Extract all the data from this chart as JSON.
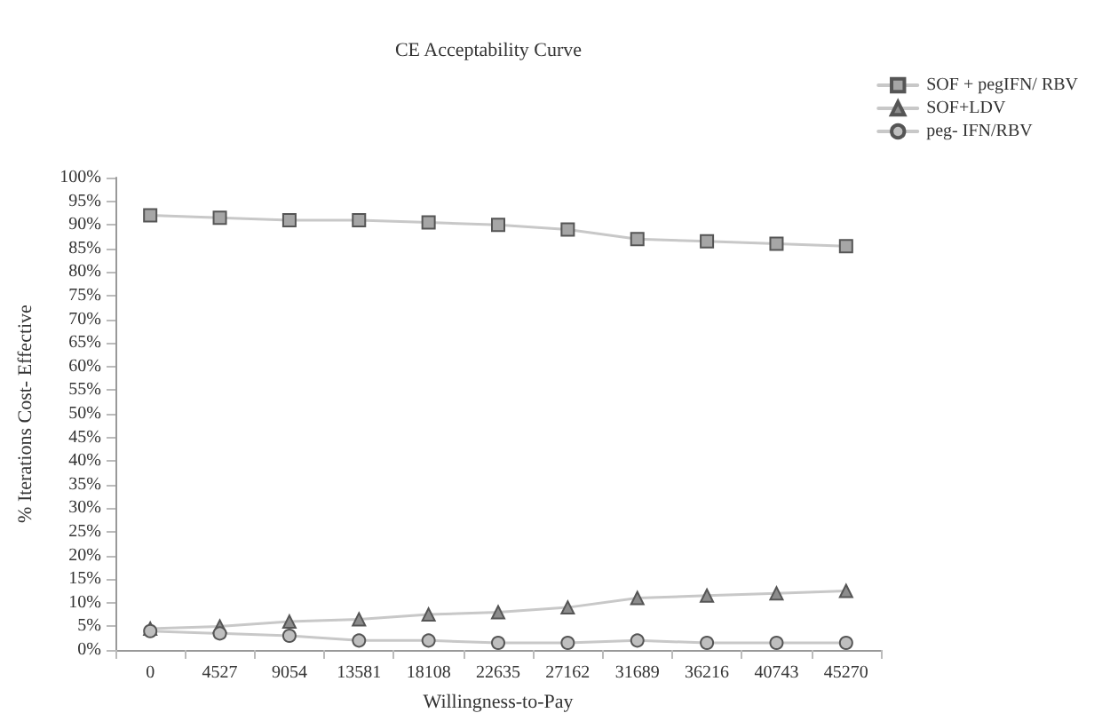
{
  "chart_data": {
    "type": "line",
    "title": "CE Acceptability Curve",
    "xlabel": "Willingness-to-Pay",
    "ylabel": "% Iterations Cost- Effective",
    "categories": [
      "0",
      "4527",
      "9054",
      "13581",
      "18108",
      "22635",
      "27162",
      "31689",
      "36216",
      "40743",
      "45270"
    ],
    "series": [
      {
        "name": "SOF + pegIFN/ RBV",
        "color": "#a6a6a6",
        "marker": "square",
        "values": [
          92,
          91.5,
          91,
          91,
          90.5,
          90,
          89,
          87,
          86.5,
          86,
          85.5
        ]
      },
      {
        "name": "SOF+LDV",
        "color": "#8c8c8c",
        "marker": "triangle",
        "values": [
          4.5,
          5,
          6,
          6.5,
          7.5,
          8,
          9,
          11,
          11.5,
          12,
          12.5
        ]
      },
      {
        "name": "peg- IFN/RBV",
        "color": "#bfbfbf",
        "marker": "circle",
        "values": [
          4,
          3.5,
          3,
          2,
          2,
          1.5,
          1.5,
          2,
          1.5,
          1.5,
          1.5
        ]
      }
    ],
    "ylim": [
      0,
      100
    ],
    "yticks": [
      {
        "value": 0,
        "label": "0%"
      },
      {
        "value": 5,
        "label": "5%"
      },
      {
        "value": 10,
        "label": "10%"
      },
      {
        "value": 15,
        "label": "15%"
      },
      {
        "value": 20,
        "label": "20%"
      },
      {
        "value": 25,
        "label": "25%"
      },
      {
        "value": 30,
        "label": "30%"
      },
      {
        "value": 35,
        "label": "35%"
      },
      {
        "value": 40,
        "label": "40%"
      },
      {
        "value": 45,
        "label": "45%"
      },
      {
        "value": 50,
        "label": "50%"
      },
      {
        "value": 55,
        "label": "55%"
      },
      {
        "value": 60,
        "label": "60%"
      },
      {
        "value": 65,
        "label": "65%"
      },
      {
        "value": 70,
        "label": "70%"
      },
      {
        "value": 75,
        "label": "75%"
      },
      {
        "value": 80,
        "label": "80%"
      },
      {
        "value": 85,
        "label": "85%"
      },
      {
        "value": 90,
        "label": "90%"
      },
      {
        "value": 95,
        "label": "95%"
      },
      {
        "value": 100,
        "label": "100%"
      }
    ],
    "grid": false,
    "legend": "top right",
    "line_style": "solid"
  }
}
